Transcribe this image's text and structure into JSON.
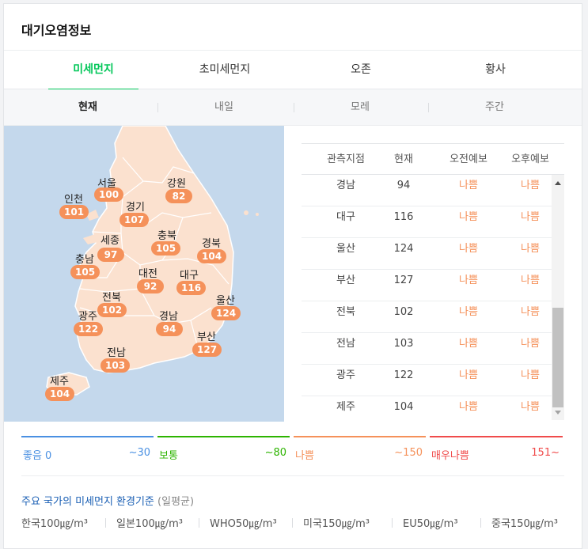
{
  "title": "대기오염정보",
  "tabs": [
    "미세먼지",
    "초미세먼지",
    "오존",
    "황사"
  ],
  "subtabs": [
    "현재",
    "내일",
    "모레",
    "주간"
  ],
  "colors": {
    "accent": "#03c75a",
    "bad": "#f5915a",
    "good": "#4a90e2",
    "normal": "#2db400",
    "very_bad": "#f04b4b",
    "sea": "#c4d8ec",
    "land": "#fbe1cf"
  },
  "map_regions": [
    {
      "name": "서울",
      "value": "100"
    },
    {
      "name": "강원",
      "value": "82"
    },
    {
      "name": "인천",
      "value": "101"
    },
    {
      "name": "경기",
      "value": "107"
    },
    {
      "name": "세종",
      "value": "97"
    },
    {
      "name": "충북",
      "value": "105"
    },
    {
      "name": "경북",
      "value": "104"
    },
    {
      "name": "충남",
      "value": "105"
    },
    {
      "name": "대전",
      "value": "92"
    },
    {
      "name": "대구",
      "value": "116"
    },
    {
      "name": "전북",
      "value": "102"
    },
    {
      "name": "울산",
      "value": "124"
    },
    {
      "name": "광주",
      "value": "122"
    },
    {
      "name": "경남",
      "value": "94"
    },
    {
      "name": "부산",
      "value": "127"
    },
    {
      "name": "전남",
      "value": "103"
    },
    {
      "name": "제주",
      "value": "104"
    }
  ],
  "table": {
    "headers": [
      "관측지점",
      "현재",
      "오전예보",
      "오후예보"
    ],
    "rows": [
      {
        "site": "경남",
        "now": "94",
        "am": "나쁨",
        "pm": "나쁨"
      },
      {
        "site": "대구",
        "now": "116",
        "am": "나쁨",
        "pm": "나쁨"
      },
      {
        "site": "울산",
        "now": "124",
        "am": "나쁨",
        "pm": "나쁨"
      },
      {
        "site": "부산",
        "now": "127",
        "am": "나쁨",
        "pm": "나쁨"
      },
      {
        "site": "전북",
        "now": "102",
        "am": "나쁨",
        "pm": "나쁨"
      },
      {
        "site": "전남",
        "now": "103",
        "am": "나쁨",
        "pm": "나쁨"
      },
      {
        "site": "광주",
        "now": "122",
        "am": "나쁨",
        "pm": "나쁨"
      },
      {
        "site": "제주",
        "now": "104",
        "am": "나쁨",
        "pm": "나쁨"
      }
    ]
  },
  "legend": [
    {
      "name": "좋음 0",
      "range": "~30"
    },
    {
      "name": "보통",
      "range": "~80"
    },
    {
      "name": "나쁨",
      "range": "~150"
    },
    {
      "name": "매우나쁨",
      "range": "151~"
    }
  ],
  "standards": {
    "title": "주요 국가의 미세먼지 환경기준",
    "subtitle": "(일평균)",
    "items": [
      "한국100㎍/m³",
      "일본100㎍/m³",
      "WHO50㎍/m³",
      "미국150㎍/m³",
      "EU50㎍/m³",
      "중국150㎍/m³"
    ]
  }
}
